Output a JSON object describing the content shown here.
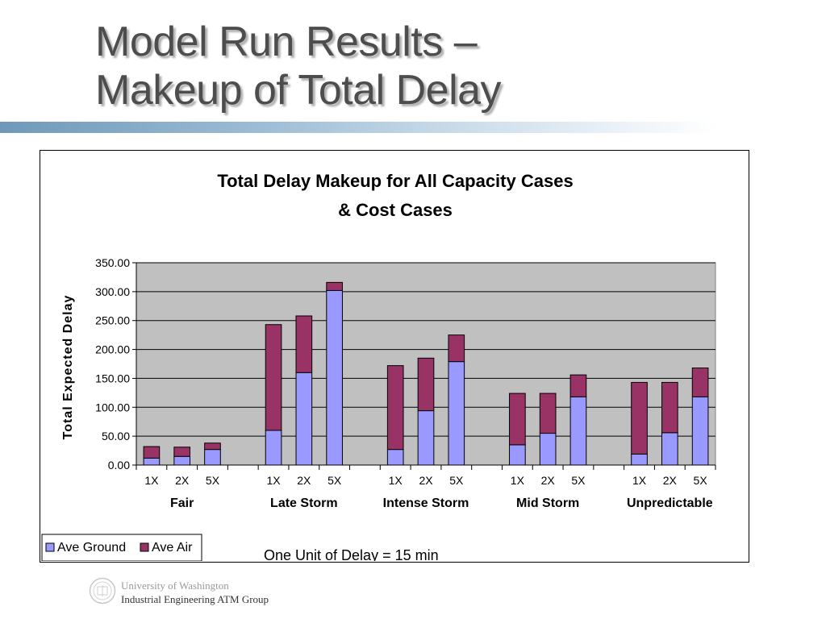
{
  "slide": {
    "title_line1": "Model Run Results –",
    "title_line2": "Makeup of Total Delay"
  },
  "footer": {
    "line1": "University of Washington",
    "line2": "Industrial Engineering ATM Group"
  },
  "chart_data": {
    "type": "bar",
    "stacked": true,
    "title_line1": "Total Delay Makeup for All Capacity Cases",
    "title_line2": "& Cost Cases",
    "ylabel": "Total Expected Delay",
    "xlabel": "",
    "ylim": [
      0,
      350
    ],
    "yticks": [
      "0.00",
      "50.00",
      "100.00",
      "150.00",
      "200.00",
      "250.00",
      "300.00",
      "350.00"
    ],
    "grid": true,
    "plot_background": "#c0c0c0",
    "groups": [
      {
        "name": "Fair",
        "categories": [
          "1X",
          "2X",
          "5X"
        ]
      },
      {
        "name": "Late Storm",
        "categories": [
          "1X",
          "2X",
          "5X"
        ]
      },
      {
        "name": "Intense Storm",
        "categories": [
          "1X",
          "2X",
          "5X"
        ]
      },
      {
        "name": "Mid Storm",
        "categories": [
          "1X",
          "2X",
          "5X"
        ]
      },
      {
        "name": "Unpredictable",
        "categories": [
          "1X",
          "2X",
          "5X"
        ]
      }
    ],
    "series": [
      {
        "name": "Ave Ground",
        "color": "#9999ff",
        "values": [
          [
            12,
            15,
            27
          ],
          [
            60,
            160,
            302
          ],
          [
            27,
            94,
            179
          ],
          [
            35,
            55,
            118
          ],
          [
            19,
            56,
            118
          ]
        ]
      },
      {
        "name": "Ave Air",
        "color": "#993366",
        "values": [
          [
            20,
            16,
            11
          ],
          [
            183,
            98,
            14
          ],
          [
            145,
            91,
            46
          ],
          [
            89,
            69,
            38
          ],
          [
            124,
            87,
            50
          ]
        ]
      }
    ],
    "legend_position": "bottom-left",
    "annotation": "One Unit of Delay = 15 min"
  }
}
